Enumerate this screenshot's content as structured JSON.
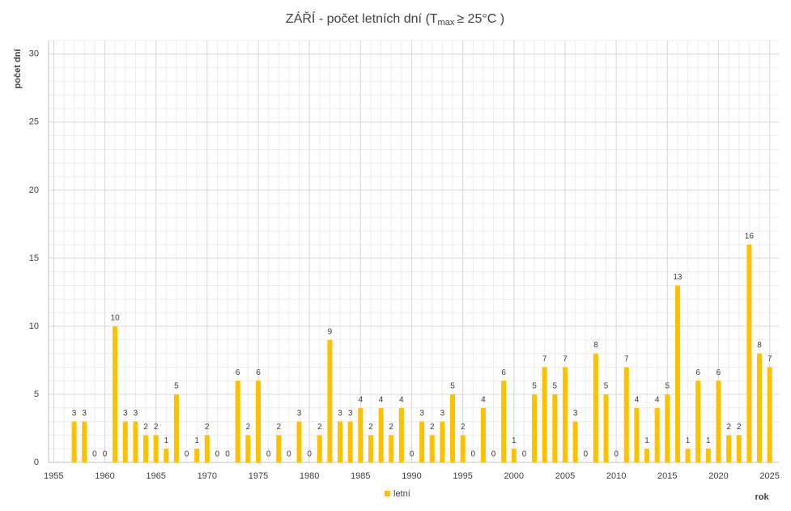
{
  "chart_data": {
    "type": "bar",
    "title": [
      "ZÁŘÍ - počet letních dní (T",
      "max",
      "≥ 25°C )"
    ],
    "y_label": "počet dní",
    "x_label": "rok",
    "x": [
      1957,
      1958,
      1959,
      1960,
      1961,
      1962,
      1963,
      1964,
      1965,
      1966,
      1967,
      1968,
      1969,
      1970,
      1971,
      1972,
      1973,
      1974,
      1975,
      1976,
      1977,
      1978,
      1979,
      1980,
      1981,
      1982,
      1983,
      1984,
      1985,
      1986,
      1987,
      1988,
      1989,
      1990,
      1991,
      1992,
      1993,
      1994,
      1995,
      1996,
      1997,
      1998,
      1999,
      2000,
      2001,
      2002,
      2003,
      2004,
      2005,
      2006,
      2007,
      2008,
      2009,
      2010,
      2011,
      2012,
      2013,
      2014,
      2015,
      2016,
      2017,
      2018,
      2019,
      2020,
      2021,
      2022,
      2023,
      2024,
      2025
    ],
    "series": [
      {
        "name": "letní",
        "color": "#ffc000",
        "values": [
          3,
          3,
          0,
          0,
          10,
          3,
          3,
          2,
          2,
          1,
          5,
          0,
          1,
          2,
          0,
          0,
          6,
          2,
          6,
          0,
          2,
          0,
          3,
          0,
          2,
          9,
          3,
          3,
          4,
          2,
          4,
          2,
          4,
          0,
          3,
          2,
          3,
          5,
          2,
          0,
          4,
          0,
          6,
          1,
          0,
          5,
          7,
          5,
          7,
          3,
          0,
          8,
          5,
          0,
          7,
          4,
          1,
          4,
          5,
          13,
          1,
          6,
          1,
          6,
          2,
          2,
          16,
          8,
          7
        ]
      }
    ],
    "xlim": [
      1954.5,
      2025.9
    ],
    "xticks": [
      1955,
      1960,
      1965,
      1970,
      1975,
      1980,
      1985,
      1990,
      1995,
      2000,
      2005,
      2010,
      2015,
      2020,
      2025
    ],
    "ylim": [
      0,
      31
    ],
    "yticks": [
      0,
      5,
      10,
      15,
      20,
      25,
      30
    ],
    "grid": true,
    "minor_grid": true
  }
}
